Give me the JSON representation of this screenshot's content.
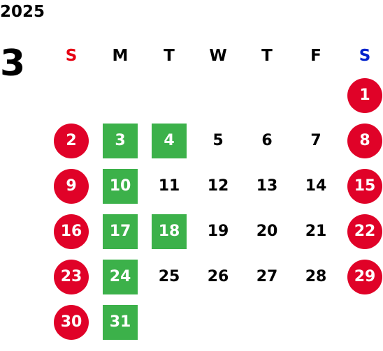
{
  "year": "2025",
  "month": "3",
  "colors": {
    "sunday_header": "#e60012",
    "saturday_header": "#0022cc",
    "holiday_circle": "#e00228",
    "marked_square": "#3cb14a",
    "text": "#000000"
  },
  "weekdays": [
    "S",
    "M",
    "T",
    "W",
    "T",
    "F",
    "S"
  ],
  "first_weekday_index": 6,
  "days": [
    {
      "label": "1",
      "style": "holiday"
    },
    {
      "label": "2",
      "style": "holiday"
    },
    {
      "label": "3",
      "style": "marked"
    },
    {
      "label": "4",
      "style": "marked"
    },
    {
      "label": "5",
      "style": "normal"
    },
    {
      "label": "6",
      "style": "normal"
    },
    {
      "label": "7",
      "style": "normal"
    },
    {
      "label": "8",
      "style": "holiday"
    },
    {
      "label": "9",
      "style": "holiday"
    },
    {
      "label": "10",
      "style": "marked"
    },
    {
      "label": "11",
      "style": "normal"
    },
    {
      "label": "12",
      "style": "normal"
    },
    {
      "label": "13",
      "style": "normal"
    },
    {
      "label": "14",
      "style": "normal"
    },
    {
      "label": "15",
      "style": "holiday"
    },
    {
      "label": "16",
      "style": "holiday"
    },
    {
      "label": "17",
      "style": "marked"
    },
    {
      "label": "18",
      "style": "marked"
    },
    {
      "label": "19",
      "style": "normal"
    },
    {
      "label": "20",
      "style": "normal"
    },
    {
      "label": "21",
      "style": "normal"
    },
    {
      "label": "22",
      "style": "holiday"
    },
    {
      "label": "23",
      "style": "holiday"
    },
    {
      "label": "24",
      "style": "marked"
    },
    {
      "label": "25",
      "style": "normal"
    },
    {
      "label": "26",
      "style": "normal"
    },
    {
      "label": "27",
      "style": "normal"
    },
    {
      "label": "28",
      "style": "normal"
    },
    {
      "label": "29",
      "style": "holiday"
    },
    {
      "label": "30",
      "style": "holiday"
    },
    {
      "label": "31",
      "style": "marked"
    }
  ]
}
